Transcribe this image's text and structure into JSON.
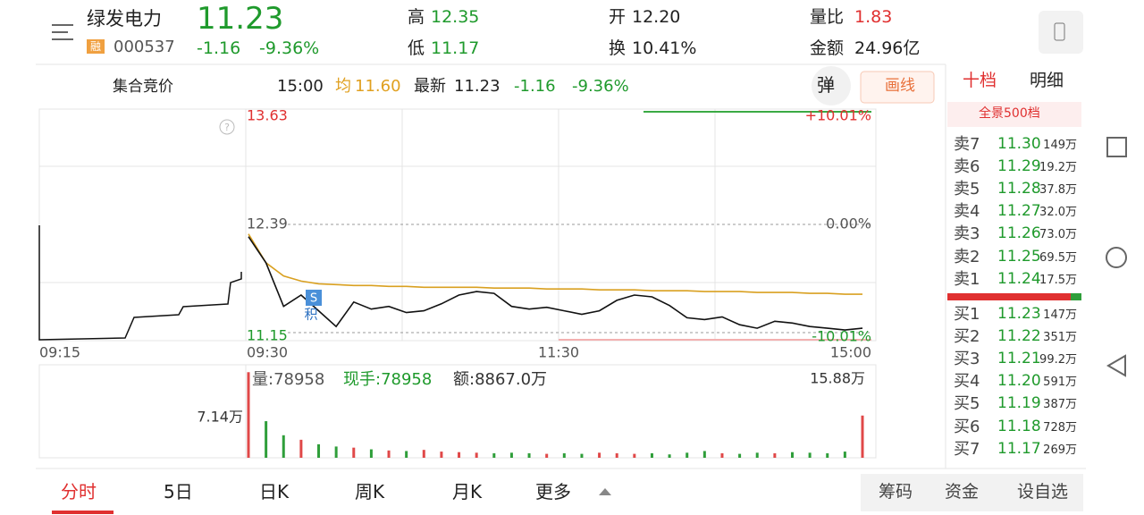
{
  "header": {
    "name": "绿发电力",
    "price": "11.23",
    "badge": "融",
    "code": "000537",
    "change": "-1.16",
    "change_pct": "-9.36%",
    "high_label": "高",
    "high": "12.35",
    "low_label": "低",
    "low": "11.17",
    "open_label": "开",
    "open": "12.20",
    "turnover_label": "换",
    "turnover": "10.41%",
    "ratio_label": "量比",
    "ratio": "1.83",
    "amount_label": "金额",
    "amount": "24.96亿"
  },
  "subbar": {
    "mode": "集合竞价",
    "time": "15:00",
    "avg_label": "均",
    "avg": "11.60",
    "latest_label": "最新",
    "latest": "11.23",
    "change": "-1.16",
    "change_pct": "-9.36%",
    "popup": "弹",
    "draw": "画线"
  },
  "chart_data": {
    "type": "line",
    "ylim": [
      11.15,
      13.63
    ],
    "yticks": [
      11.15,
      12.39,
      13.63
    ],
    "y2lim": [
      -10.01,
      10.01
    ],
    "y2ticks": [
      {
        "value": -10.01,
        "label": "-10.01%"
      },
      {
        "value": 0,
        "label": "0.00%"
      },
      {
        "value": 10.01,
        "label": "+10.01%"
      }
    ],
    "time_labels": [
      "09:15",
      "09:30",
      "11:30",
      "15:00"
    ],
    "marker": "S",
    "marker2": "积",
    "series": [
      {
        "color": "#111111",
        "values": [
          12.25,
          11.95,
          11.45,
          11.58,
          11.4,
          11.22,
          11.5,
          11.42,
          11.45,
          11.38,
          11.4,
          11.48,
          11.58,
          11.62,
          11.6,
          11.45,
          11.42,
          11.44,
          11.4,
          11.36,
          11.4,
          11.52,
          11.58,
          11.56,
          11.46,
          11.32,
          11.3,
          11.33,
          11.24,
          11.2,
          11.28,
          11.26,
          11.22,
          11.2,
          11.18,
          11.2
        ]
      },
      {
        "color": "#d9a020",
        "values": [
          12.28,
          11.95,
          11.8,
          11.74,
          11.71,
          11.7,
          11.69,
          11.69,
          11.68,
          11.68,
          11.67,
          11.67,
          11.67,
          11.67,
          11.66,
          11.66,
          11.66,
          11.65,
          11.65,
          11.65,
          11.64,
          11.64,
          11.64,
          11.63,
          11.63,
          11.63,
          11.62,
          11.62,
          11.62,
          11.61,
          11.61,
          11.61,
          11.6,
          11.6,
          11.59,
          11.59
        ]
      }
    ]
  },
  "volume_chart": {
    "ylim": [
      0,
      15.88
    ],
    "yticks": [
      {
        "value": 7.14,
        "label": "7.14万"
      },
      {
        "value": 15.88,
        "label": "15.88万"
      }
    ],
    "vol_text": "量:78958",
    "hand_text": "现手:78958",
    "amount_text": "额:8867.0万",
    "up_color": "#e04848",
    "down_color": "#2f9e3a",
    "values": [
      15.2,
      6.5,
      4.0,
      3.2,
      2.4,
      2.0,
      1.8,
      1.5,
      1.3,
      1.2,
      1.4,
      1.1,
      1.0,
      0.9,
      0.8,
      0.9,
      0.8,
      0.7,
      0.8,
      0.7,
      0.9,
      0.8,
      0.7,
      0.8,
      0.6,
      0.9,
      1.2,
      0.8,
      0.7,
      0.9,
      0.8,
      1.0,
      0.9,
      0.8,
      1.1,
      7.5
    ]
  },
  "book": {
    "tabs": [
      "十档",
      "明细"
    ],
    "panorama": "全景500档",
    "asks": [
      [
        "卖7",
        "11.30",
        "149万"
      ],
      [
        "卖6",
        "11.29",
        "19.2万"
      ],
      [
        "卖5",
        "11.28",
        "37.8万"
      ],
      [
        "卖4",
        "11.27",
        "32.0万"
      ],
      [
        "卖3",
        "11.26",
        "73.0万"
      ],
      [
        "卖2",
        "11.25",
        "69.5万"
      ],
      [
        "卖1",
        "11.24",
        "17.5万"
      ]
    ],
    "bids": [
      [
        "买1",
        "11.23",
        "147万"
      ],
      [
        "买2",
        "11.22",
        "351万"
      ],
      [
        "买3",
        "11.21",
        "99.2万"
      ],
      [
        "买4",
        "11.20",
        "591万"
      ],
      [
        "买5",
        "11.19",
        "387万"
      ],
      [
        "买6",
        "11.18",
        "728万"
      ],
      [
        "买7",
        "11.17",
        "269万"
      ]
    ]
  },
  "bottom": {
    "tabs": [
      "分时",
      "5日",
      "日K",
      "周K",
      "月K",
      "更多"
    ],
    "buttons": [
      "筹码",
      "资金",
      "设自选"
    ]
  }
}
